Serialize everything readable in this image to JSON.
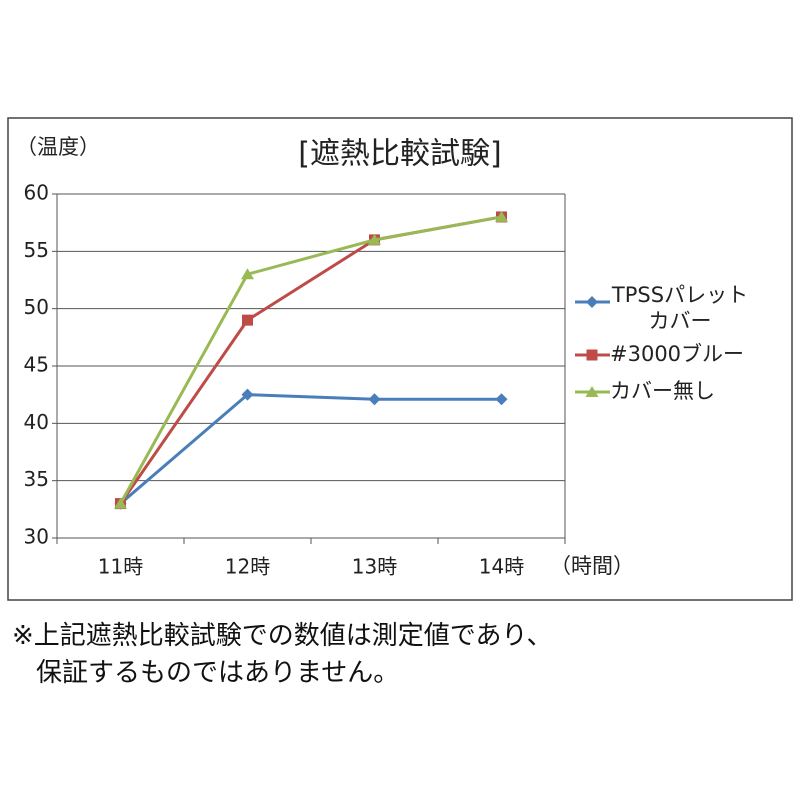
{
  "chart_data": {
    "type": "line",
    "title": "[遮熱比較試験]",
    "y_label": "（温度）",
    "x_label": "（時間）",
    "categories": [
      "11時",
      "12時",
      "13時",
      "14時"
    ],
    "series": [
      {
        "name": "TPSSパレットカバー",
        "color": "#4a7ebb",
        "marker": "diamond",
        "values": [
          33,
          42.5,
          42.1,
          42.1
        ]
      },
      {
        "name": "#3000ブルー",
        "color": "#be4b48",
        "marker": "square",
        "values": [
          33,
          49,
          56,
          58
        ]
      },
      {
        "name": "カバー無し",
        "color": "#98b954",
        "marker": "triangle",
        "values": [
          33,
          53,
          56,
          58
        ]
      }
    ],
    "ylim": [
      30,
      60
    ],
    "yticks": [
      30,
      35,
      40,
      45,
      50,
      55,
      60
    ],
    "grid": true,
    "legend": "right"
  },
  "footnote": [
    "※上記遮熱比較試験での数値は測定値であり、",
    "保証するものではありません。"
  ]
}
